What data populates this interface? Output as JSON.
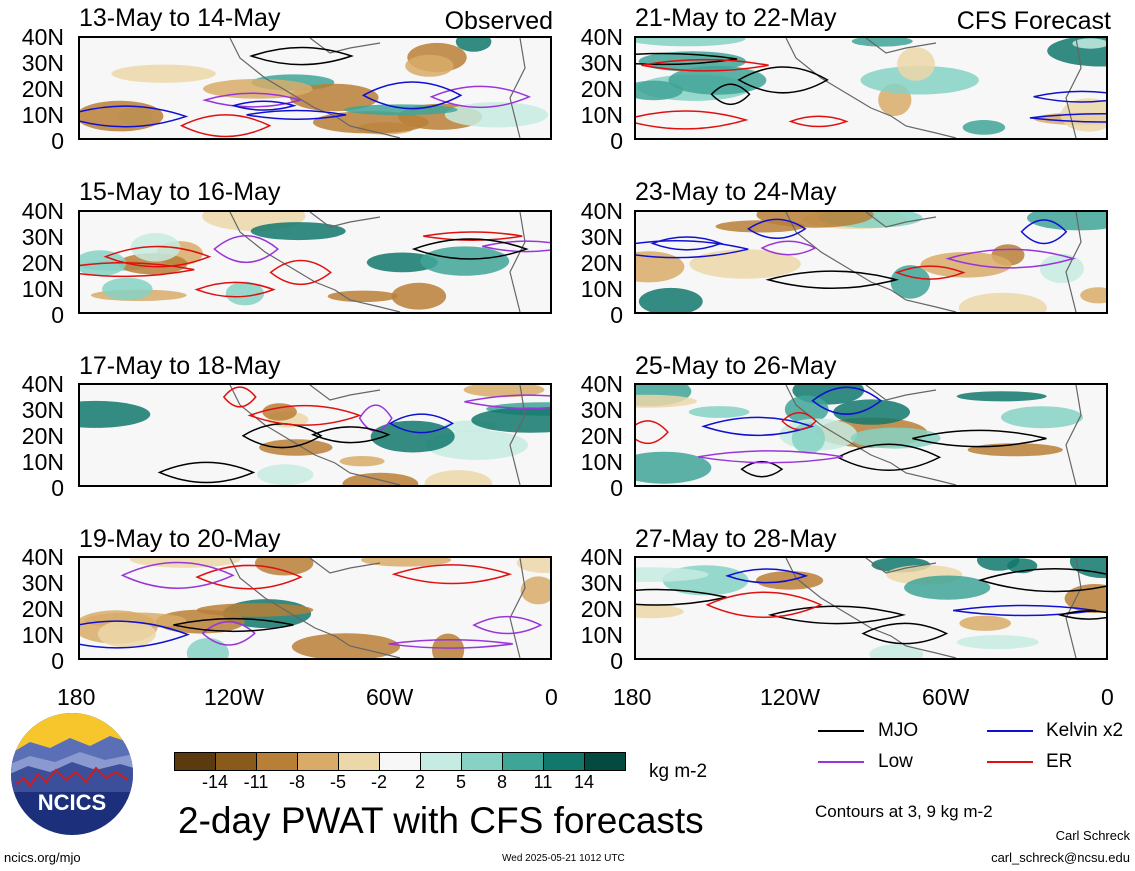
{
  "header": {
    "observed_label": "Observed",
    "forecast_label": "CFS Forecast"
  },
  "panels_left": [
    {
      "title": "13-May to 14-May"
    },
    {
      "title": "15-May to 16-May"
    },
    {
      "title": "17-May to 18-May"
    },
    {
      "title": "19-May to 20-May"
    }
  ],
  "panels_right": [
    {
      "title": "21-May to 22-May"
    },
    {
      "title": "23-May to 24-May"
    },
    {
      "title": "25-May to 26-May"
    },
    {
      "title": "27-May to 28-May"
    }
  ],
  "lat_ticks": [
    "40N",
    "30N",
    "20N",
    "10N",
    "0"
  ],
  "lon_ticks": [
    "180",
    "120W",
    "60W",
    "0"
  ],
  "colorbar": {
    "labels": [
      "-14",
      "-11",
      "-8",
      "-5",
      "-2",
      "2",
      "5",
      "8",
      "11",
      "14"
    ],
    "colors": [
      "#5a3a0e",
      "#8a5a1c",
      "#b87f36",
      "#d8ab69",
      "#ecd7a8",
      "#f7f7f7",
      "#c5ebe2",
      "#86d2c4",
      "#3fa596",
      "#12786c",
      "#044a41"
    ],
    "units": "kg m-2"
  },
  "legend": {
    "items": [
      {
        "label": "MJO",
        "color": "#000000"
      },
      {
        "label": "Kelvin x2",
        "color": "#1010d0"
      },
      {
        "label": "Low",
        "color": "#9a35d8"
      },
      {
        "label": "ER",
        "color": "#e01010"
      }
    ],
    "contour_note": "Contours at 3, 9 kg m-2"
  },
  "main_title": "2-day PWAT with CFS forecasts",
  "logo": {
    "text": "NCICS"
  },
  "footer": {
    "url": "ncics.org/mjo",
    "timestamp": "Wed 2025-05-21 1012 UTC",
    "author": "Carl Schreck",
    "email": "carl_schreck@ncsu.edu"
  }
}
